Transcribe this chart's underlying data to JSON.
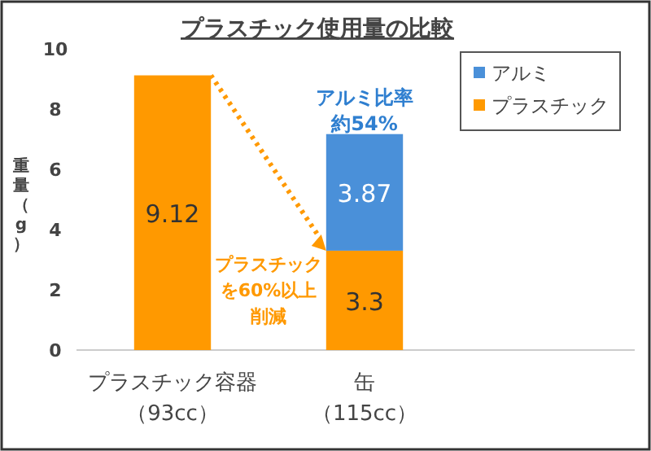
{
  "chart_data": {
    "type": "bar",
    "title": "プラスチック使用量の比較",
    "ylabel": "重量（g）",
    "categories": [
      "プラスチック容器（93cc）",
      "缶（115cc）"
    ],
    "series": [
      {
        "name": "プラスチック",
        "color": "#ff9900",
        "values": [
          9.12,
          3.3
        ]
      },
      {
        "name": "アルミ",
        "color": "#4a90d9",
        "values": [
          null,
          3.87
        ]
      }
    ],
    "stacked": true,
    "data_labels": true,
    "ylim": [
      0,
      10
    ],
    "yticks": [
      0,
      2,
      4,
      6,
      8,
      10
    ],
    "grid": false,
    "legend": "top right",
    "annotations": [
      "アルミ比率約54%",
      "プラスチックを60%以上削減"
    ]
  }
}
